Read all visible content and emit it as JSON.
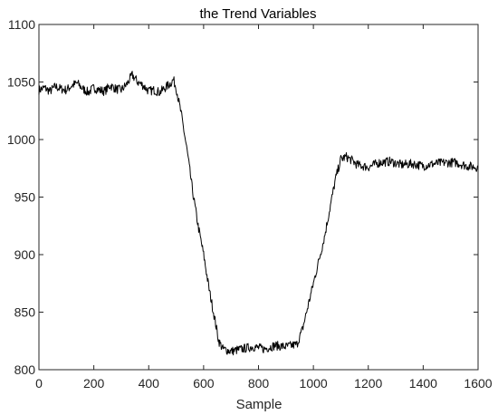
{
  "chart_data": {
    "type": "line",
    "title": "the Trend Variables",
    "xlabel": "Sample",
    "ylabel": "",
    "xlim": [
      0,
      1600
    ],
    "ylim": [
      800,
      1100
    ],
    "xticks": [
      0,
      200,
      400,
      600,
      800,
      1000,
      1200,
      1400,
      1600
    ],
    "yticks": [
      800,
      850,
      900,
      950,
      1000,
      1050,
      1100
    ],
    "grid": false,
    "legend": "none",
    "colors": {
      "line": "#000000",
      "axes": "#262626",
      "background": "#ffffff"
    },
    "series": [
      {
        "x": [
          0,
          20,
          40,
          60,
          80,
          100,
          120,
          140,
          160,
          180,
          200,
          220,
          240,
          260,
          280,
          300,
          320,
          340,
          360,
          380,
          400,
          420,
          440,
          460,
          480,
          490,
          500,
          520,
          540,
          560,
          580,
          600,
          620,
          640,
          655,
          670,
          700,
          740,
          780,
          820,
          860,
          900,
          940,
          960,
          980,
          1000,
          1020,
          1040,
          1060,
          1080,
          1100,
          1120,
          1140,
          1160,
          1200,
          1240,
          1280,
          1320,
          1360,
          1400,
          1440,
          1480,
          1520,
          1560,
          1600
        ],
        "y": [
          1043,
          1045,
          1042,
          1046,
          1044,
          1043,
          1047,
          1049,
          1044,
          1041,
          1045,
          1043,
          1042,
          1047,
          1044,
          1043,
          1048,
          1056,
          1050,
          1047,
          1042,
          1043,
          1041,
          1045,
          1049,
          1052,
          1045,
          1020,
          990,
          955,
          925,
          900,
          870,
          845,
          825,
          818,
          816,
          818,
          820,
          818,
          821,
          820,
          822,
          835,
          855,
          875,
          895,
          915,
          940,
          965,
          983,
          985,
          982,
          978,
          976,
          980,
          981,
          978,
          979,
          977,
          979,
          980,
          980,
          977,
          976
        ]
      }
    ]
  }
}
